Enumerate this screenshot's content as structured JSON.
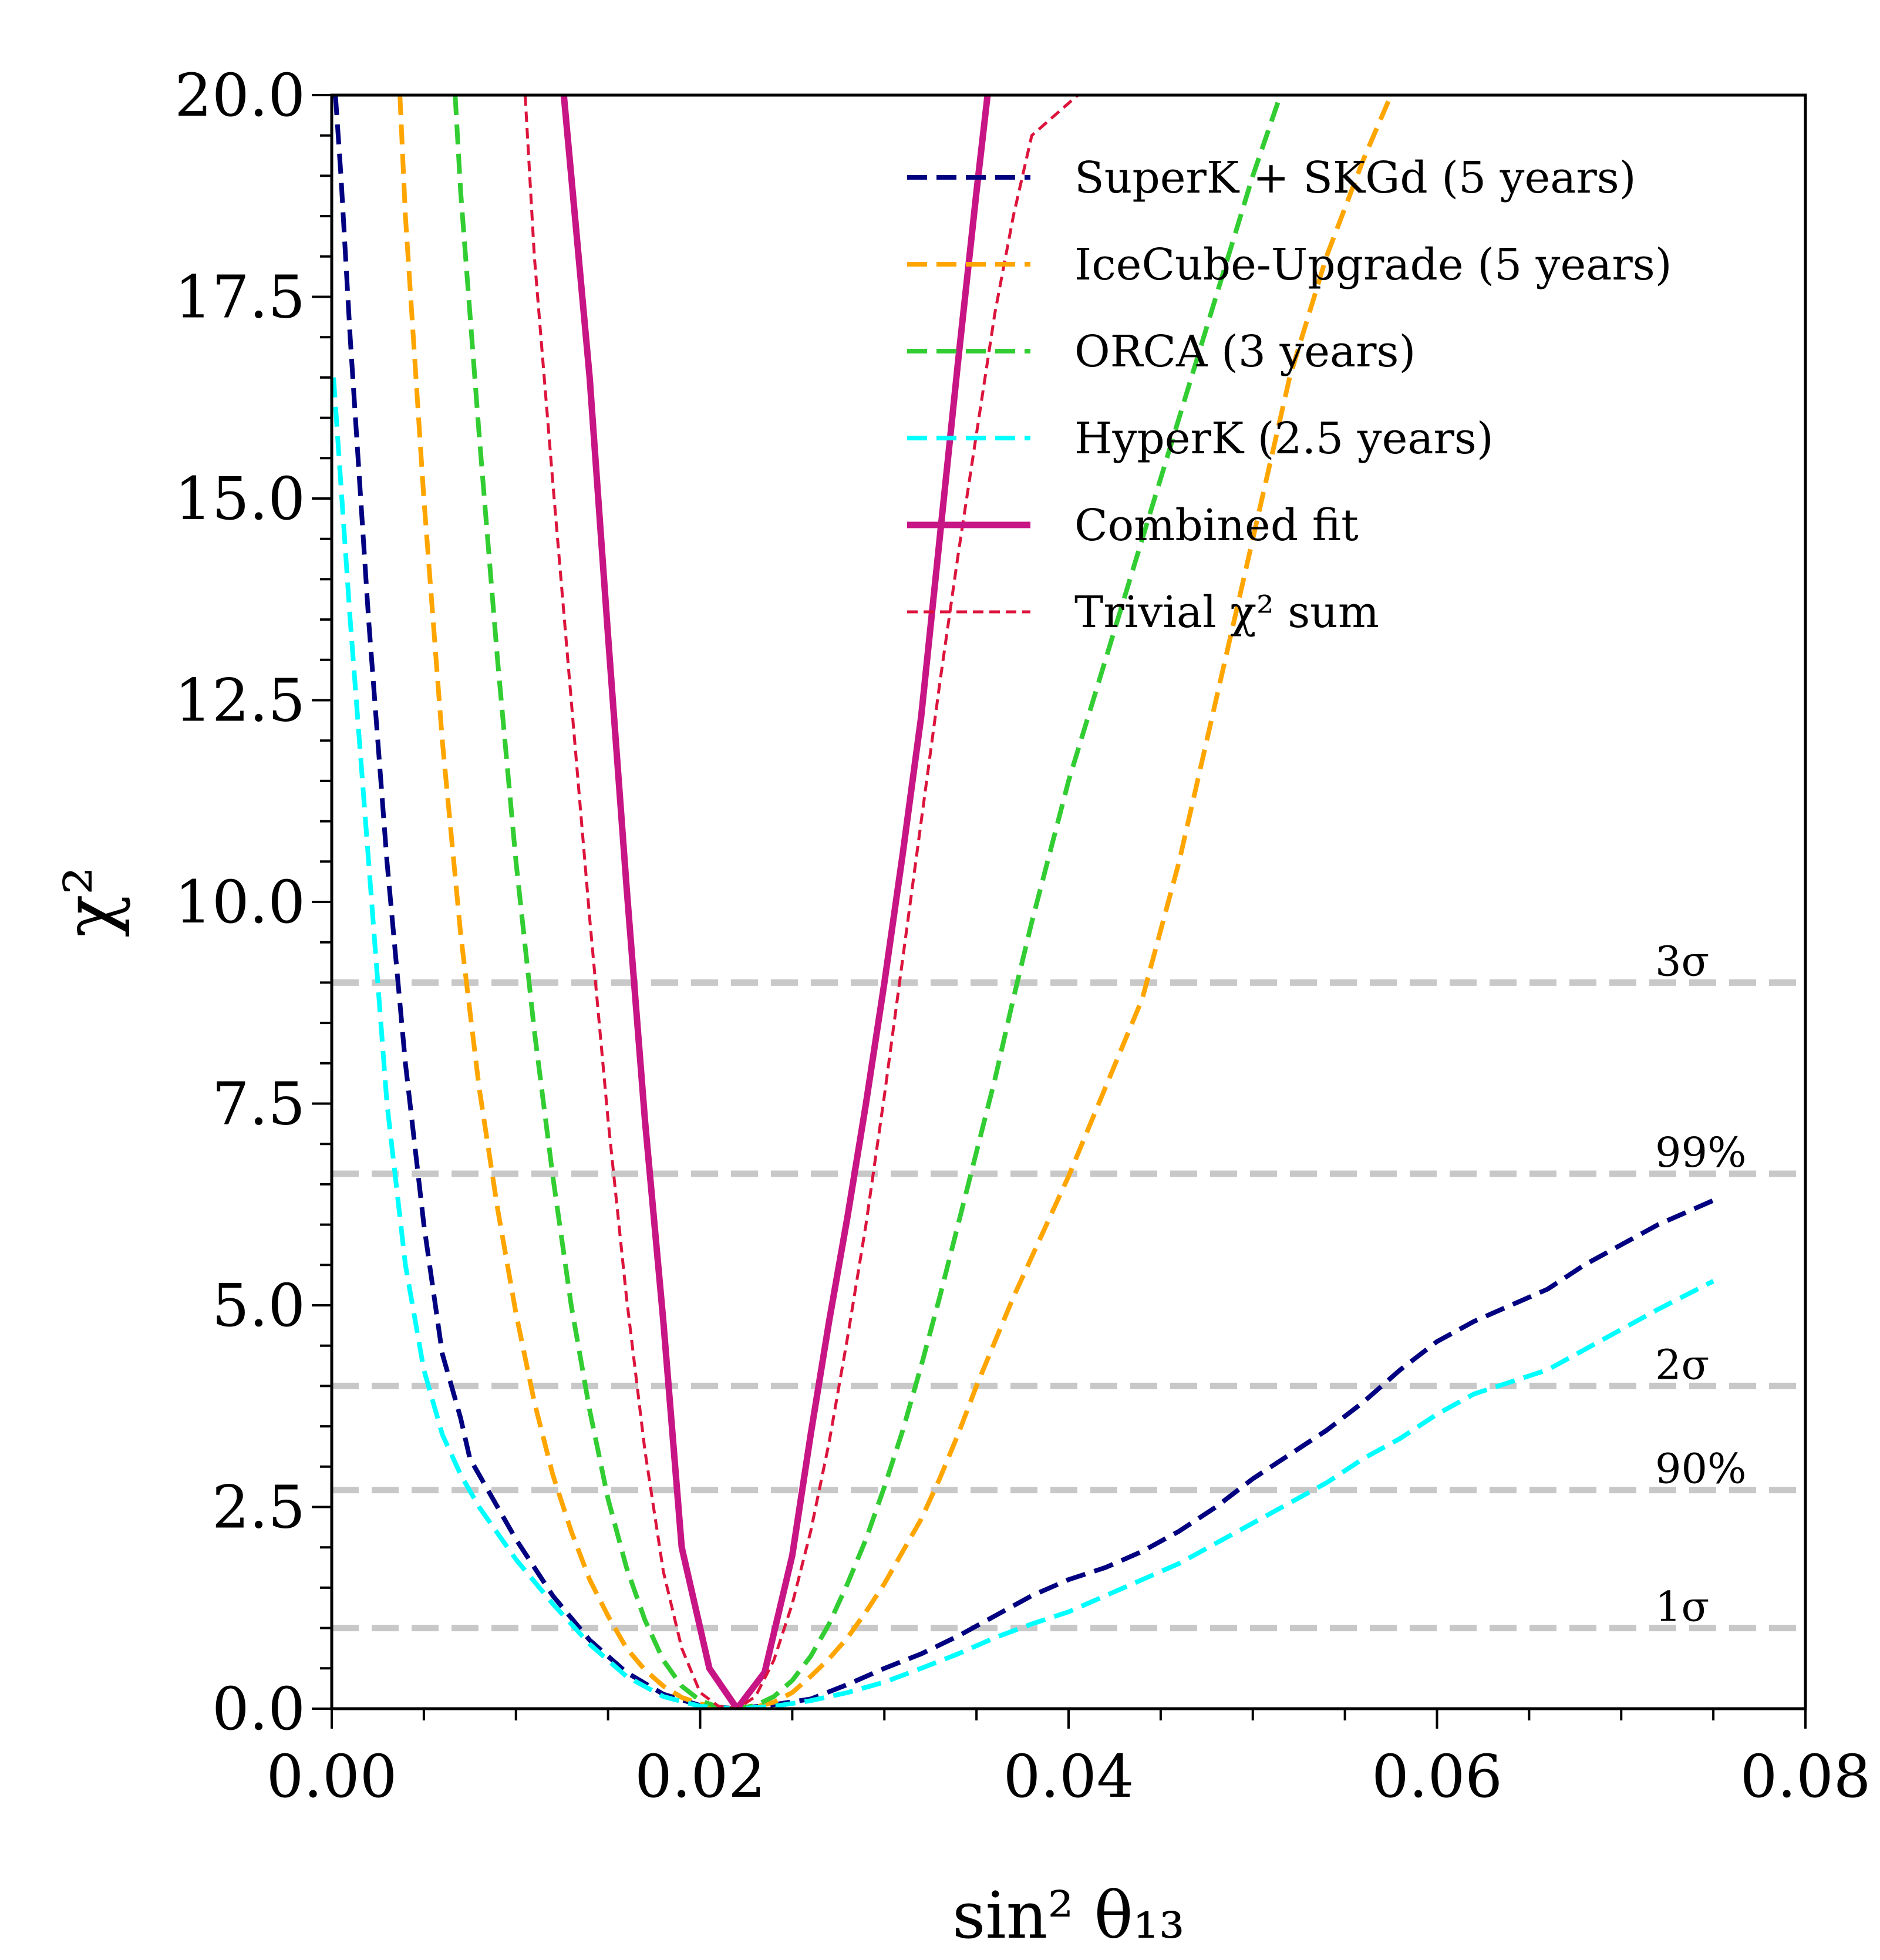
{
  "chart_data": {
    "type": "line",
    "xlabel": "sin² θ₁₃",
    "ylabel": "χ²",
    "xlim": [
      0.0,
      0.08
    ],
    "ylim": [
      0.0,
      20.0
    ],
    "xticks": [
      0.0,
      0.02,
      0.04,
      0.06,
      0.08
    ],
    "xtick_labels": [
      "0.00",
      "0.02",
      "0.04",
      "0.06",
      "0.08"
    ],
    "yticks": [
      0.0,
      2.5,
      5.0,
      7.5,
      10.0,
      12.5,
      15.0,
      17.5,
      20.0
    ],
    "ytick_labels": [
      "0.0",
      "2.5",
      "5.0",
      "7.5",
      "10.0",
      "12.5",
      "15.0",
      "17.5",
      "20.0"
    ],
    "legend_position": "top-right",
    "series": [
      {
        "name": "SuperK + SKGd (5 years)",
        "color": "#000080",
        "style": "dashed",
        "points": [
          [
            0.0002,
            20.0
          ],
          [
            0.0005,
            19.0
          ],
          [
            0.001,
            17.0
          ],
          [
            0.002,
            13.5
          ],
          [
            0.003,
            10.5
          ],
          [
            0.004,
            8.0
          ],
          [
            0.005,
            6.0
          ],
          [
            0.006,
            4.4
          ],
          [
            0.007,
            3.6
          ],
          [
            0.0075,
            3.1
          ],
          [
            0.008,
            2.9
          ],
          [
            0.01,
            2.1
          ],
          [
            0.012,
            1.4
          ],
          [
            0.014,
            0.85
          ],
          [
            0.016,
            0.45
          ],
          [
            0.018,
            0.18
          ],
          [
            0.02,
            0.04
          ],
          [
            0.022,
            0.0
          ],
          [
            0.024,
            0.05
          ],
          [
            0.026,
            0.12
          ],
          [
            0.028,
            0.3
          ],
          [
            0.03,
            0.5
          ],
          [
            0.032,
            0.68
          ],
          [
            0.034,
            0.9
          ],
          [
            0.036,
            1.15
          ],
          [
            0.038,
            1.4
          ],
          [
            0.04,
            1.6
          ],
          [
            0.042,
            1.75
          ],
          [
            0.044,
            1.95
          ],
          [
            0.046,
            2.2
          ],
          [
            0.048,
            2.5
          ],
          [
            0.05,
            2.85
          ],
          [
            0.052,
            3.15
          ],
          [
            0.054,
            3.45
          ],
          [
            0.056,
            3.8
          ],
          [
            0.058,
            4.2
          ],
          [
            0.06,
            4.55
          ],
          [
            0.062,
            4.8
          ],
          [
            0.064,
            5.0
          ],
          [
            0.066,
            5.2
          ],
          [
            0.068,
            5.5
          ],
          [
            0.07,
            5.75
          ],
          [
            0.072,
            6.0
          ],
          [
            0.075,
            6.3
          ]
        ]
      },
      {
        "name": "IceCube-Upgrade (5 years)",
        "color": "#FFA500",
        "style": "dashed",
        "points": [
          [
            0.0037,
            20.0
          ],
          [
            0.004,
            18.5
          ],
          [
            0.005,
            15.0
          ],
          [
            0.006,
            12.0
          ],
          [
            0.007,
            9.6
          ],
          [
            0.008,
            7.7
          ],
          [
            0.009,
            6.2
          ],
          [
            0.01,
            4.9
          ],
          [
            0.011,
            3.8
          ],
          [
            0.012,
            2.9
          ],
          [
            0.013,
            2.2
          ],
          [
            0.014,
            1.6
          ],
          [
            0.015,
            1.15
          ],
          [
            0.016,
            0.75
          ],
          [
            0.017,
            0.48
          ],
          [
            0.018,
            0.28
          ],
          [
            0.019,
            0.14
          ],
          [
            0.02,
            0.06
          ],
          [
            0.021,
            0.02
          ],
          [
            0.022,
            0.0
          ],
          [
            0.023,
            0.02
          ],
          [
            0.024,
            0.08
          ],
          [
            0.025,
            0.2
          ],
          [
            0.026,
            0.4
          ],
          [
            0.027,
            0.62
          ],
          [
            0.028,
            0.88
          ],
          [
            0.029,
            1.2
          ],
          [
            0.03,
            1.55
          ],
          [
            0.031,
            1.95
          ],
          [
            0.032,
            2.35
          ],
          [
            0.033,
            2.85
          ],
          [
            0.034,
            3.4
          ],
          [
            0.035,
            4.0
          ],
          [
            0.036,
            4.55
          ],
          [
            0.037,
            5.1
          ],
          [
            0.038,
            5.6
          ],
          [
            0.039,
            6.1
          ],
          [
            0.04,
            6.6
          ],
          [
            0.042,
            7.7
          ],
          [
            0.044,
            8.8
          ],
          [
            0.046,
            10.5
          ],
          [
            0.048,
            12.5
          ],
          [
            0.05,
            14.5
          ],
          [
            0.052,
            16.5
          ],
          [
            0.054,
            18.0
          ],
          [
            0.056,
            19.2
          ],
          [
            0.0575,
            20.0
          ]
        ]
      },
      {
        "name": "ORCA (3 years)",
        "color": "#32CD32",
        "style": "dashed",
        "points": [
          [
            0.0067,
            20.0
          ],
          [
            0.007,
            18.8
          ],
          [
            0.008,
            15.8
          ],
          [
            0.009,
            13.0
          ],
          [
            0.01,
            10.5
          ],
          [
            0.011,
            8.4
          ],
          [
            0.012,
            6.6
          ],
          [
            0.013,
            5.0
          ],
          [
            0.014,
            3.7
          ],
          [
            0.015,
            2.6
          ],
          [
            0.016,
            1.75
          ],
          [
            0.017,
            1.1
          ],
          [
            0.018,
            0.6
          ],
          [
            0.019,
            0.28
          ],
          [
            0.02,
            0.1
          ],
          [
            0.021,
            0.02
          ],
          [
            0.022,
            0.0
          ],
          [
            0.023,
            0.04
          ],
          [
            0.024,
            0.15
          ],
          [
            0.025,
            0.35
          ],
          [
            0.026,
            0.65
          ],
          [
            0.027,
            1.05
          ],
          [
            0.028,
            1.55
          ],
          [
            0.029,
            2.1
          ],
          [
            0.03,
            2.75
          ],
          [
            0.031,
            3.45
          ],
          [
            0.032,
            4.25
          ],
          [
            0.033,
            5.1
          ],
          [
            0.034,
            6.0
          ],
          [
            0.035,
            6.9
          ],
          [
            0.036,
            7.8
          ],
          [
            0.037,
            8.8
          ],
          [
            0.038,
            9.75
          ],
          [
            0.04,
            11.5
          ],
          [
            0.042,
            13.0
          ],
          [
            0.044,
            14.5
          ],
          [
            0.046,
            16.0
          ],
          [
            0.048,
            17.5
          ],
          [
            0.05,
            19.0
          ],
          [
            0.0515,
            20.0
          ]
        ]
      },
      {
        "name": "HyperK (2.5 years)",
        "color": "#00FFFF",
        "style": "dashed",
        "points": [
          [
            0.0001,
            16.5
          ],
          [
            0.001,
            13.5
          ],
          [
            0.002,
            10.5
          ],
          [
            0.003,
            7.5
          ],
          [
            0.004,
            5.5
          ],
          [
            0.005,
            4.2
          ],
          [
            0.006,
            3.4
          ],
          [
            0.007,
            2.9
          ],
          [
            0.008,
            2.5
          ],
          [
            0.01,
            1.85
          ],
          [
            0.012,
            1.3
          ],
          [
            0.014,
            0.8
          ],
          [
            0.016,
            0.4
          ],
          [
            0.018,
            0.15
          ],
          [
            0.02,
            0.03
          ],
          [
            0.022,
            0.0
          ],
          [
            0.024,
            0.03
          ],
          [
            0.026,
            0.1
          ],
          [
            0.028,
            0.2
          ],
          [
            0.03,
            0.33
          ],
          [
            0.032,
            0.5
          ],
          [
            0.034,
            0.68
          ],
          [
            0.036,
            0.88
          ],
          [
            0.038,
            1.05
          ],
          [
            0.04,
            1.2
          ],
          [
            0.042,
            1.4
          ],
          [
            0.044,
            1.6
          ],
          [
            0.046,
            1.8
          ],
          [
            0.048,
            2.05
          ],
          [
            0.05,
            2.3
          ],
          [
            0.052,
            2.55
          ],
          [
            0.054,
            2.8
          ],
          [
            0.056,
            3.1
          ],
          [
            0.058,
            3.35
          ],
          [
            0.06,
            3.65
          ],
          [
            0.062,
            3.9
          ],
          [
            0.064,
            4.05
          ],
          [
            0.066,
            4.2
          ],
          [
            0.068,
            4.45
          ],
          [
            0.07,
            4.7
          ],
          [
            0.072,
            4.95
          ],
          [
            0.075,
            5.3
          ]
        ]
      },
      {
        "name": "Combined fit",
        "color": "#C71585",
        "style": "solid",
        "points": [
          [
            0.0126,
            20.0
          ],
          [
            0.013,
            19.0
          ],
          [
            0.014,
            16.5
          ],
          [
            0.015,
            13.3
          ],
          [
            0.016,
            10.2
          ],
          [
            0.017,
            7.3
          ],
          [
            0.018,
            4.8
          ],
          [
            0.019,
            2.0
          ],
          [
            0.0205,
            0.5
          ],
          [
            0.022,
            0.0
          ],
          [
            0.0235,
            0.45
          ],
          [
            0.025,
            1.9
          ],
          [
            0.026,
            3.4
          ],
          [
            0.027,
            4.8
          ],
          [
            0.028,
            6.1
          ],
          [
            0.029,
            7.5
          ],
          [
            0.03,
            9.0
          ],
          [
            0.031,
            10.6
          ],
          [
            0.032,
            12.3
          ],
          [
            0.033,
            14.5
          ],
          [
            0.034,
            16.7
          ],
          [
            0.035,
            18.8
          ],
          [
            0.0356,
            20.0
          ]
        ]
      },
      {
        "name": "Trivial χ² sum",
        "color": "#DC143C",
        "style": "thin-dashed",
        "points": [
          [
            0.0105,
            20.0
          ],
          [
            0.011,
            18.0
          ],
          [
            0.012,
            15.2
          ],
          [
            0.013,
            12.5
          ],
          [
            0.014,
            9.8
          ],
          [
            0.015,
            7.3
          ],
          [
            0.016,
            5.1
          ],
          [
            0.017,
            3.2
          ],
          [
            0.018,
            1.7
          ],
          [
            0.019,
            0.75
          ],
          [
            0.02,
            0.2
          ],
          [
            0.021,
            0.03
          ],
          [
            0.022,
            0.0
          ],
          [
            0.023,
            0.15
          ],
          [
            0.024,
            0.6
          ],
          [
            0.025,
            1.3
          ],
          [
            0.026,
            2.2
          ],
          [
            0.027,
            3.3
          ],
          [
            0.028,
            4.6
          ],
          [
            0.029,
            6.0
          ],
          [
            0.03,
            7.6
          ],
          [
            0.031,
            9.3
          ],
          [
            0.032,
            11.0
          ],
          [
            0.033,
            12.7
          ],
          [
            0.034,
            14.3
          ],
          [
            0.035,
            15.8
          ],
          [
            0.036,
            17.3
          ],
          [
            0.037,
            18.5
          ],
          [
            0.038,
            19.5
          ],
          [
            0.0405,
            20.0
          ]
        ]
      }
    ],
    "reference_lines": [
      {
        "label": "3σ",
        "value": 9.0
      },
      {
        "label": "99%",
        "value": 6.63
      },
      {
        "label": "2σ",
        "value": 4.0
      },
      {
        "label": "90%",
        "value": 2.71
      },
      {
        "label": "1σ",
        "value": 1.0
      }
    ],
    "reference_color": "#C8C8C8"
  }
}
